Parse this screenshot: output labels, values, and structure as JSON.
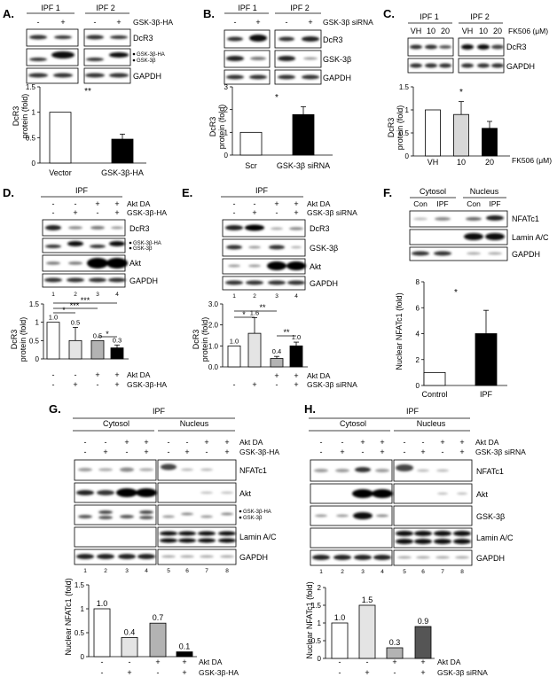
{
  "panels": {
    "A": {
      "letter": "A.",
      "groups": [
        "IPF 1",
        "IPF 2"
      ],
      "signs": [
        "-",
        "+",
        "-",
        "+"
      ],
      "treat": "GSK-3β-HA",
      "bands": [
        "DcR3",
        "GSK-3β-HA",
        "GSK-3β",
        "GAPDH"
      ],
      "ylabel": [
        "DcR3",
        "protein (fold)"
      ],
      "sig": [
        "**"
      ],
      "cats": [
        "Vector",
        "GSK-3β-HA"
      ]
    },
    "B": {
      "letter": "B.",
      "groups": [
        "IPF 1",
        "IPF 2"
      ],
      "signs": [
        "-",
        "+",
        "-",
        "+"
      ],
      "treat": "GSK-3β siRNA",
      "bands": [
        "DcR3",
        "GSK-3β",
        "GAPDH"
      ],
      "ylabel": [
        "DcR3",
        "protein (fold)"
      ],
      "sig": [
        "*"
      ],
      "cats": [
        "Scr",
        "GSK-3β siRNA"
      ]
    },
    "C": {
      "letter": "C.",
      "groups": [
        "IPF 1",
        "IPF 2"
      ],
      "doses": [
        "VH",
        "10",
        "20",
        "VH",
        "10",
        "20"
      ],
      "unit": "FK506 (μM)",
      "bands": [
        "DcR3",
        "GAPDH"
      ],
      "ylabel": [
        "DcR3",
        "protein (fold)"
      ],
      "sig": [
        "*"
      ],
      "cats": [
        "VH",
        "10",
        "20"
      ],
      "xunit": "FK506 (μM)"
    },
    "D": {
      "letter": "D.",
      "title": "IPF",
      "row1": [
        "-",
        "-",
        "+",
        "+"
      ],
      "row2": [
        "-",
        "+",
        "-",
        "+"
      ],
      "row_labels": [
        "Akt DA",
        "GSK-3β-HA"
      ],
      "bands": [
        "DcR3",
        "GSK-3β-HA",
        "GSK-3β",
        "Akt",
        "GAPDH"
      ],
      "lanes": [
        "1",
        "2",
        "3",
        "4"
      ],
      "ylabel": [
        "DcR3",
        "protein (fold)"
      ],
      "sig": [
        "*",
        "***",
        "***",
        "*"
      ]
    },
    "E": {
      "letter": "E.",
      "title": "IPF",
      "row1": [
        "-",
        "-",
        "+",
        "+"
      ],
      "row2": [
        "-",
        "+",
        "-",
        "+"
      ],
      "row_labels": [
        "Akt DA",
        "GSK-3β siRNA"
      ],
      "bands": [
        "DcR3",
        "GSK-3β",
        "Akt",
        "GAPDH"
      ],
      "lanes": [
        "1",
        "2",
        "3",
        "4"
      ],
      "ylabel": [
        "DcR3",
        "protein (fold)"
      ],
      "sig": [
        "*",
        "**",
        "**"
      ]
    },
    "F": {
      "letter": "F.",
      "groups": [
        "Cytosol",
        "Nucleus"
      ],
      "lanes": [
        "Con",
        "IPF",
        "Con",
        "IPF"
      ],
      "bands": [
        "NFATc1",
        "Lamin A/C",
        "GAPDH"
      ],
      "ylabel": "Nuclear NFATc1 (fold)",
      "sig": [
        "*"
      ],
      "cats": [
        "Control",
        "IPF"
      ]
    },
    "G": {
      "letter": "G.",
      "title": "IPF",
      "groups": [
        "Cytosol",
        "Nucleus"
      ],
      "row1": [
        "-",
        "-",
        "+",
        "+",
        "-",
        "-",
        "+",
        "+"
      ],
      "row2": [
        "-",
        "+",
        "-",
        "+",
        "-",
        "+",
        "-",
        "+"
      ],
      "row_labels": [
        "Akt DA",
        "GSK-3β-HA"
      ],
      "bands": [
        "NFATc1",
        "Akt",
        "GSK-3β-HA",
        "GSK-3β",
        "Lamin A/C",
        "GAPDH"
      ],
      "lanes": [
        "1",
        "2",
        "3",
        "4",
        "5",
        "6",
        "7",
        "8"
      ],
      "ylabel": "Nuclear NFATc1 (fold)",
      "x_row1": [
        "-",
        "-",
        "+",
        "+"
      ],
      "x_row2": [
        "-",
        "+",
        "-",
        "+"
      ]
    },
    "H": {
      "letter": "H.",
      "title": "IPF",
      "groups": [
        "Cytosol",
        "Nucleus"
      ],
      "row1": [
        "-",
        "-",
        "+",
        "+",
        "-",
        "-",
        "+",
        "+"
      ],
      "row2": [
        "-",
        "+",
        "-",
        "+",
        "-",
        "+",
        "-",
        "+"
      ],
      "row_labels": [
        "Akt DA",
        "GSK-3β siRNA"
      ],
      "bands": [
        "NFATc1",
        "Akt",
        "GSK-3β",
        "Lamin A/C",
        "GAPDH"
      ],
      "lanes": [
        "1",
        "2",
        "3",
        "4",
        "5",
        "6",
        "7",
        "8"
      ],
      "ylabel": "Nuclear NFATc1 (fold)",
      "x_row1": [
        "-",
        "-",
        "+",
        "+"
      ],
      "x_row2": [
        "-",
        "+",
        "-",
        "+"
      ]
    }
  },
  "chart_data": [
    {
      "id": "A",
      "type": "bar",
      "categories": [
        "Vector",
        "GSK-3β-HA"
      ],
      "values": [
        1.0,
        0.47
      ],
      "errors": [
        0,
        0.1
      ],
      "colors": [
        "#ffffff",
        "#000000"
      ],
      "ylim": [
        0,
        1.5
      ],
      "yticks": [
        "0",
        "0.5",
        "1",
        "1.5"
      ]
    },
    {
      "id": "B",
      "type": "bar",
      "categories": [
        "Scr",
        "GSK-3β siRNA"
      ],
      "values": [
        1.0,
        1.78
      ],
      "errors": [
        0,
        0.35
      ],
      "colors": [
        "#ffffff",
        "#000000"
      ],
      "ylim": [
        0,
        3
      ],
      "yticks": [
        "0",
        "1",
        "2",
        "3"
      ]
    },
    {
      "id": "C",
      "type": "bar",
      "categories": [
        "VH",
        "10",
        "20"
      ],
      "values": [
        1.0,
        0.9,
        0.6
      ],
      "errors": [
        0,
        0.28,
        0.15
      ],
      "colors": [
        "#ffffff",
        "#d8d8d8",
        "#000000"
      ],
      "ylim": [
        0,
        1.5
      ],
      "yticks": [
        "0",
        "0.5",
        "1",
        "1.5"
      ]
    },
    {
      "id": "D",
      "type": "bar",
      "values": [
        1.0,
        0.5,
        0.5,
        0.3
      ],
      "labels": [
        "1.0",
        "0.5",
        "0.5",
        "0.3"
      ],
      "errors": [
        0,
        0.36,
        0,
        0.08
      ],
      "colors": [
        "#ffffff",
        "#e4e4e4",
        "#b3b3b3",
        "#000000"
      ],
      "ylim": [
        0,
        1.5
      ],
      "yticks": [
        "0",
        "0.5",
        "1",
        "1.5"
      ]
    },
    {
      "id": "E",
      "type": "bar",
      "values": [
        1.0,
        1.6,
        0.4,
        1.0
      ],
      "labels": [
        "1.0",
        "1.6",
        "0.4",
        "1.0"
      ],
      "errors": [
        0,
        0.75,
        0.1,
        0.18
      ],
      "colors": [
        "#ffffff",
        "#e4e4e4",
        "#b3b3b3",
        "#000000"
      ],
      "ylim": [
        0,
        3
      ],
      "yticks": [
        "0.0",
        "1.0",
        "2.0",
        "3.0"
      ]
    },
    {
      "id": "F",
      "type": "bar",
      "categories": [
        "Control",
        "IPF"
      ],
      "values": [
        1.0,
        4.0
      ],
      "errors": [
        0,
        1.8
      ],
      "colors": [
        "#ffffff",
        "#000000"
      ],
      "ylim": [
        0,
        8
      ],
      "yticks": [
        "0",
        "2",
        "4",
        "6",
        "8"
      ]
    },
    {
      "id": "G",
      "type": "bar",
      "values": [
        1.0,
        0.4,
        0.7,
        0.1
      ],
      "labels": [
        "1.0",
        "0.4",
        "0.7",
        "0.1"
      ],
      "colors": [
        "#ffffff",
        "#e4e4e4",
        "#b3b3b3",
        "#000000"
      ],
      "ylim": [
        0,
        1.5
      ],
      "yticks": [
        "0",
        "0.5",
        "1",
        "1.5"
      ]
    },
    {
      "id": "H",
      "type": "bar",
      "values": [
        1.0,
        1.5,
        0.3,
        0.9
      ],
      "labels": [
        "1.0",
        "1.5",
        "0.3",
        "0.9"
      ],
      "colors": [
        "#ffffff",
        "#e4e4e4",
        "#b3b3b3",
        "#555555"
      ],
      "ylim": [
        0,
        2
      ],
      "yticks": [
        "0",
        "0.5",
        "1",
        "1.5",
        "2"
      ]
    }
  ]
}
